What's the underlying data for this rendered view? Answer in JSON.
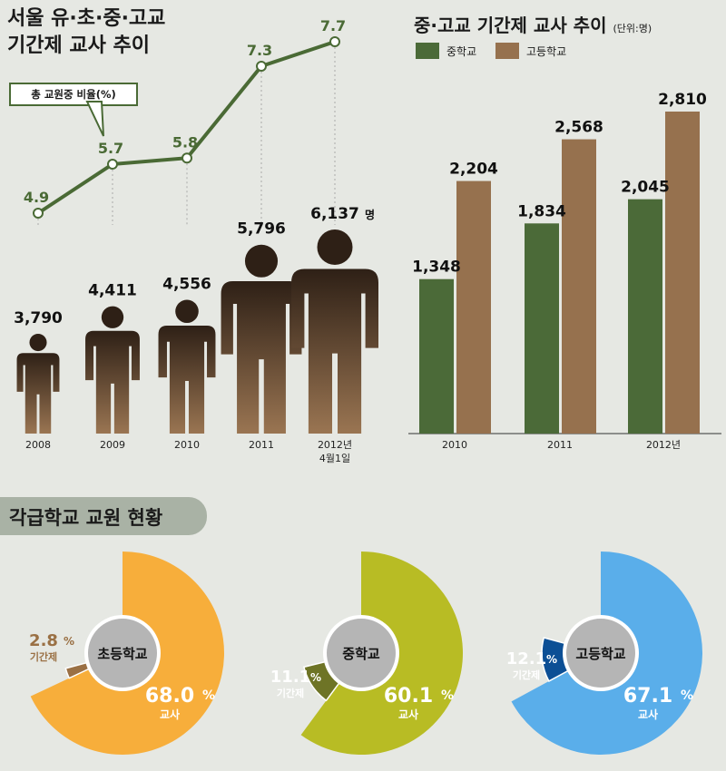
{
  "left_title": "서울 유·초·중·고교\n기간제 교사 추이",
  "right_title": "중·고교 기간제 교사 추이",
  "right_unit": "(단위:명)",
  "ratio_label": "총 교원중 비율(%)",
  "section_title": "각급학교 교원 현황",
  "legend": {
    "middle": "중학교",
    "high": "고등학교"
  },
  "colors": {
    "line": "#4a6a35",
    "middle": "#4b6a38",
    "high": "#96714e",
    "elementary": "#f7ae3b",
    "middle_pie": "#b8bc24",
    "high_pie": "#5aaeea"
  },
  "chart_data": [
    {
      "type": "line",
      "title": "서울 유·초·중·고교 기간제 교사 추이",
      "categories": [
        "2008",
        "2009",
        "2010",
        "2011",
        "2012년\n4월1일"
      ],
      "series": [
        {
          "name": "총 교원중 비율(%)",
          "values": [
            4.9,
            5.7,
            5.8,
            7.3,
            7.7
          ]
        },
        {
          "name": "기간제 교사 수",
          "values": [
            3790,
            4411,
            4556,
            5796,
            6137
          ],
          "labels": [
            "3,790",
            "4,411",
            "4,556",
            "5,796",
            "6,137"
          ],
          "suffix": "명"
        }
      ]
    },
    {
      "type": "bar",
      "title": "중·고교 기간제 교사 추이",
      "unit": "(단위:명)",
      "categories": [
        "2010",
        "2011",
        "2012년"
      ],
      "series": [
        {
          "name": "중학교",
          "values": [
            1348,
            1834,
            2045
          ],
          "labels": [
            "1,348",
            "1,834",
            "2,045"
          ]
        },
        {
          "name": "고등학교",
          "values": [
            2204,
            2568,
            2810
          ],
          "labels": [
            "2,204",
            "2,568",
            "2,810"
          ]
        }
      ]
    },
    {
      "type": "pie",
      "name": "초등학교",
      "slices": [
        {
          "label": "교사",
          "value": 68.0,
          "text": "68.0"
        },
        {
          "label": "기간제",
          "value": 2.8,
          "text": "2.8"
        }
      ]
    },
    {
      "type": "pie",
      "name": "중학교",
      "slices": [
        {
          "label": "교사",
          "value": 60.1,
          "text": "60.1"
        },
        {
          "label": "기간제",
          "value": 11.1,
          "text": "11.1"
        }
      ]
    },
    {
      "type": "pie",
      "name": "고등학교",
      "slices": [
        {
          "label": "교사",
          "value": 67.1,
          "text": "67.1"
        },
        {
          "label": "기간제",
          "value": 12.1,
          "text": "12.1"
        }
      ]
    }
  ]
}
